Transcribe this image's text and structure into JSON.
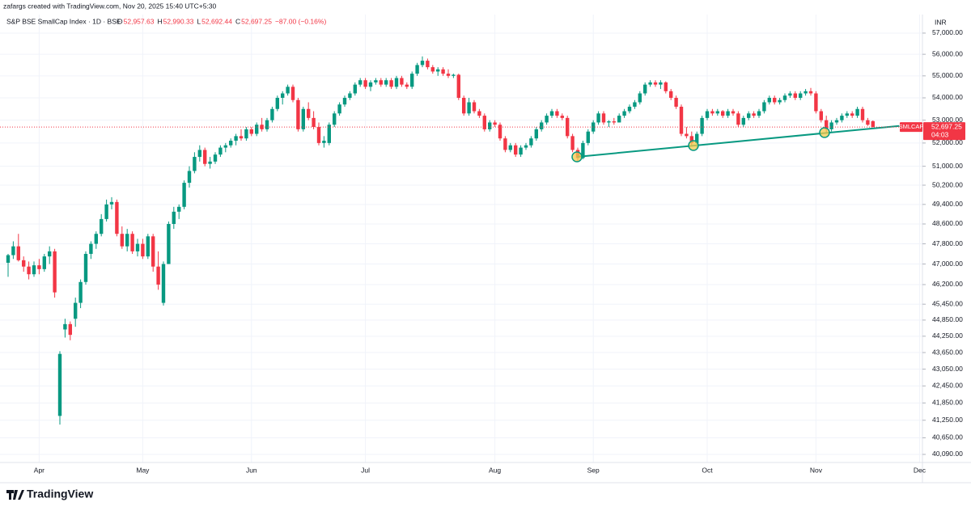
{
  "attribution": "zafargs created with TradingView.com, Nov 20, 2025 15:40 UTC+5:30",
  "brand": "TradingView",
  "chart_data": {
    "type": "candlestick",
    "title": "S&P BSE SmallCap Index · 1D · BSE",
    "ohlc_legend": [
      {
        "key": "O",
        "value": "52,957.63"
      },
      {
        "key": "H",
        "value": "52,990.33"
      },
      {
        "key": "L",
        "value": "52,692.44"
      },
      {
        "key": "C",
        "value": "52,697.25"
      }
    ],
    "change": "−87.00 (−0.16%)",
    "currency": "INR",
    "symbol": "SMLCAP",
    "last_price_label": "52,697.25",
    "countdown": "04:03",
    "up_color": "#089981",
    "down_color": "#f23645",
    "grid": true,
    "log_scale": true,
    "ylim": [
      39820,
      57890
    ],
    "yticks": [
      {
        "value": 57000,
        "label": "57,000.00"
      },
      {
        "value": 56000,
        "label": "56,000.00"
      },
      {
        "value": 55000,
        "label": "55,000.00"
      },
      {
        "value": 54000,
        "label": "54,000.00"
      },
      {
        "value": 53000,
        "label": "53,000.00"
      },
      {
        "value": 52000,
        "label": "52,000.00"
      },
      {
        "value": 51000,
        "label": "51,000.00"
      },
      {
        "value": 50200,
        "label": "50,200.00"
      },
      {
        "value": 49400,
        "label": "49,400.00"
      },
      {
        "value": 48600,
        "label": "48,600.00"
      },
      {
        "value": 47800,
        "label": "47,800.00"
      },
      {
        "value": 47000,
        "label": "47,000.00"
      },
      {
        "value": 46200,
        "label": "46,200.00"
      },
      {
        "value": 45450,
        "label": "45,450.00"
      },
      {
        "value": 44850,
        "label": "44,850.00"
      },
      {
        "value": 44250,
        "label": "44,250.00"
      },
      {
        "value": 43650,
        "label": "43,650.00"
      },
      {
        "value": 43050,
        "label": "43,050.00"
      },
      {
        "value": 42450,
        "label": "42,450.00"
      },
      {
        "value": 41850,
        "label": "41,850.00"
      },
      {
        "value": 41250,
        "label": "41,250.00"
      },
      {
        "value": 40650,
        "label": "40,650.00"
      },
      {
        "value": 40090,
        "label": "40,090.00"
      }
    ],
    "categories": [
      null,
      null,
      null,
      null,
      null,
      null,
      "Apr",
      null,
      null,
      null,
      null,
      null,
      null,
      null,
      null,
      null,
      null,
      null,
      null,
      null,
      null,
      null,
      null,
      null,
      null,
      null,
      "May",
      null,
      null,
      null,
      null,
      null,
      null,
      null,
      null,
      null,
      null,
      null,
      null,
      null,
      null,
      null,
      null,
      null,
      null,
      null,
      null,
      "Jun",
      null,
      null,
      null,
      null,
      null,
      null,
      null,
      null,
      null,
      null,
      null,
      null,
      null,
      null,
      null,
      null,
      null,
      null,
      null,
      null,
      null,
      "Jul",
      null,
      null,
      null,
      null,
      null,
      null,
      null,
      null,
      null,
      null,
      null,
      null,
      null,
      null,
      null,
      null,
      null,
      null,
      null,
      null,
      null,
      null,
      null,
      null,
      "Aug",
      null,
      null,
      null,
      null,
      null,
      null,
      null,
      null,
      null,
      null,
      null,
      null,
      null,
      null,
      null,
      null,
      null,
      null,
      "Sep",
      null,
      null,
      null,
      null,
      null,
      null,
      null,
      null,
      null,
      null,
      null,
      null,
      null,
      null,
      null,
      null,
      null,
      null,
      null,
      null,
      null,
      "Oct",
      null,
      null,
      null,
      null,
      null,
      null,
      null,
      null,
      null,
      null,
      null,
      null,
      null,
      null,
      null,
      null,
      null,
      null,
      null,
      null,
      "Nov",
      null,
      null,
      null,
      null,
      null,
      null,
      null,
      null,
      null,
      null,
      null,
      null,
      null,
      null,
      null,
      null,
      null,
      null,
      null,
      "Dec"
    ],
    "ohlc": [
      [
        47050,
        47400,
        46500,
        47350
      ],
      [
        47350,
        47900,
        47200,
        47700
      ],
      [
        47700,
        48200,
        47100,
        47150
      ],
      [
        47150,
        47300,
        46700,
        46900
      ],
      [
        46900,
        47100,
        46400,
        46600
      ],
      [
        46600,
        47100,
        46500,
        46950
      ],
      [
        46950,
        47200,
        46600,
        46800
      ],
      [
        46800,
        47400,
        46700,
        47300
      ],
      [
        47300,
        47700,
        47000,
        47500
      ],
      [
        47500,
        47600,
        45700,
        45900
      ],
      [
        41400,
        43700,
        41100,
        43600
      ],
      [
        44500,
        44900,
        44200,
        44700
      ],
      [
        44700,
        44800,
        44100,
        44300
      ],
      [
        44900,
        45700,
        44600,
        45500
      ],
      [
        45500,
        46400,
        45300,
        46300
      ],
      [
        46300,
        47500,
        46200,
        47400
      ],
      [
        47400,
        47900,
        47200,
        47800
      ],
      [
        47800,
        48300,
        47600,
        48200
      ],
      [
        48200,
        49000,
        48100,
        48800
      ],
      [
        48800,
        49600,
        48700,
        49400
      ],
      [
        49400,
        49700,
        49200,
        49500
      ],
      [
        49500,
        49600,
        48100,
        48200
      ],
      [
        48200,
        48500,
        47600,
        47700
      ],
      [
        47700,
        48400,
        47500,
        48200
      ],
      [
        48200,
        48300,
        47400,
        47500
      ],
      [
        47500,
        48000,
        47300,
        47800
      ],
      [
        47800,
        48000,
        47200,
        47300
      ],
      [
        47300,
        48200,
        47200,
        48100
      ],
      [
        48100,
        48200,
        46700,
        46900
      ],
      [
        46900,
        47500,
        46000,
        46200
      ],
      [
        45500,
        47100,
        45400,
        47000
      ],
      [
        47000,
        48700,
        47000,
        48600
      ],
      [
        48600,
        49300,
        48400,
        49100
      ],
      [
        49100,
        49400,
        48800,
        49300
      ],
      [
        49300,
        50400,
        49200,
        50300
      ],
      [
        50300,
        51000,
        50100,
        50800
      ],
      [
        50800,
        51600,
        50700,
        51400
      ],
      [
        51400,
        51900,
        51200,
        51700
      ],
      [
        51700,
        51800,
        51000,
        51100
      ],
      [
        51100,
        51400,
        50900,
        51200
      ],
      [
        51200,
        51600,
        51100,
        51500
      ],
      [
        51500,
        51900,
        51400,
        51800
      ],
      [
        51800,
        52000,
        51600,
        51900
      ],
      [
        51900,
        52200,
        51800,
        52100
      ],
      [
        52100,
        52400,
        51900,
        52300
      ],
      [
        52300,
        52600,
        52100,
        52200
      ],
      [
        52200,
        52700,
        52100,
        52600
      ],
      [
        52600,
        52700,
        52300,
        52400
      ],
      [
        52400,
        52900,
        52300,
        52800
      ],
      [
        52800,
        53100,
        52500,
        52600
      ],
      [
        52600,
        53100,
        52500,
        53000
      ],
      [
        53000,
        53600,
        52900,
        53500
      ],
      [
        53500,
        54100,
        53400,
        54000
      ],
      [
        54000,
        54300,
        53700,
        54200
      ],
      [
        54200,
        54600,
        54100,
        54500
      ],
      [
        54500,
        54600,
        53800,
        53900
      ],
      [
        53900,
        54000,
        52500,
        52600
      ],
      [
        52600,
        53600,
        52500,
        53500
      ],
      [
        53500,
        53800,
        53000,
        53100
      ],
      [
        53100,
        53400,
        52600,
        52700
      ],
      [
        52700,
        52900,
        51900,
        52000
      ],
      [
        52000,
        52300,
        51800,
        52100
      ],
      [
        52000,
        52900,
        51900,
        52800
      ],
      [
        52800,
        53400,
        52700,
        53300
      ],
      [
        53300,
        53800,
        53200,
        53700
      ],
      [
        53700,
        54100,
        53600,
        54000
      ],
      [
        54000,
        54300,
        53900,
        54200
      ],
      [
        54200,
        54700,
        54100,
        54600
      ],
      [
        54600,
        54900,
        54500,
        54800
      ],
      [
        54800,
        54900,
        54400,
        54500
      ],
      [
        54500,
        54800,
        54300,
        54700
      ],
      [
        54700,
        54900,
        54600,
        54800
      ],
      [
        54800,
        54900,
        54500,
        54600
      ],
      [
        54600,
        54900,
        54500,
        54800
      ],
      [
        54800,
        54900,
        54400,
        54500
      ],
      [
        54500,
        55000,
        54400,
        54900
      ],
      [
        54900,
        55000,
        54500,
        54600
      ],
      [
        54600,
        54700,
        54400,
        54500
      ],
      [
        54500,
        55200,
        54400,
        55100
      ],
      [
        55100,
        55600,
        55000,
        55500
      ],
      [
        55500,
        55900,
        55400,
        55700
      ],
      [
        55700,
        55800,
        55300,
        55400
      ],
      [
        55400,
        55500,
        55100,
        55200
      ],
      [
        55200,
        55400,
        55000,
        55300
      ],
      [
        55300,
        55400,
        55000,
        55100
      ],
      [
        55100,
        55300,
        54900,
        55000
      ],
      [
        55000,
        55100,
        54900,
        55050
      ],
      [
        55050,
        55100,
        53900,
        54000
      ],
      [
        54000,
        54100,
        53200,
        53300
      ],
      [
        53300,
        54000,
        53200,
        53800
      ],
      [
        53800,
        53900,
        53300,
        53400
      ],
      [
        53400,
        53500,
        53100,
        53200
      ],
      [
        53200,
        53300,
        52500,
        52600
      ],
      [
        52600,
        53000,
        52500,
        52900
      ],
      [
        52900,
        53000,
        52700,
        52800
      ],
      [
        52800,
        52900,
        52100,
        52200
      ],
      [
        52200,
        52300,
        51600,
        51700
      ],
      [
        51700,
        52000,
        51600,
        51900
      ],
      [
        51900,
        52000,
        51400,
        51500
      ],
      [
        51500,
        51900,
        51400,
        51800
      ],
      [
        51800,
        52000,
        51700,
        51900
      ],
      [
        51900,
        52300,
        51800,
        52200
      ],
      [
        52200,
        52700,
        52100,
        52600
      ],
      [
        52600,
        53000,
        52500,
        52900
      ],
      [
        52900,
        53300,
        52800,
        53200
      ],
      [
        53200,
        53500,
        53100,
        53400
      ],
      [
        53400,
        53500,
        53100,
        53200
      ],
      [
        53200,
        53300,
        53000,
        53100
      ],
      [
        53100,
        53200,
        52200,
        52300
      ],
      [
        52300,
        52400,
        51600,
        51700
      ],
      [
        51700,
        51800,
        51200,
        51350
      ],
      [
        51350,
        52100,
        51300,
        52000
      ],
      [
        52000,
        52600,
        51900,
        52500
      ],
      [
        52500,
        53000,
        52400,
        52900
      ],
      [
        52900,
        53400,
        52800,
        53300
      ],
      [
        53300,
        53400,
        52800,
        52900
      ],
      [
        52900,
        53000,
        52700,
        52950
      ],
      [
        52950,
        53100,
        52800,
        52900
      ],
      [
        52900,
        53300,
        52900,
        53200
      ],
      [
        53200,
        53500,
        53100,
        53400
      ],
      [
        53400,
        53700,
        53300,
        53600
      ],
      [
        53600,
        53900,
        53500,
        53800
      ],
      [
        53800,
        54300,
        53700,
        54200
      ],
      [
        54200,
        54700,
        54100,
        54600
      ],
      [
        54600,
        54800,
        54500,
        54700
      ],
      [
        54700,
        54800,
        54500,
        54600
      ],
      [
        54600,
        54800,
        54400,
        54700
      ],
      [
        54700,
        54750,
        54200,
        54300
      ],
      [
        54300,
        54400,
        53900,
        54000
      ],
      [
        54000,
        54100,
        53500,
        53600
      ],
      [
        53600,
        53700,
        52300,
        52400
      ],
      [
        52400,
        52700,
        52200,
        52300
      ],
      [
        52300,
        52500,
        51900,
        52000
      ],
      [
        52000,
        52500,
        51800,
        52400
      ],
      [
        52400,
        53200,
        52300,
        53100
      ],
      [
        53100,
        53500,
        53000,
        53400
      ],
      [
        53400,
        53500,
        53200,
        53300
      ],
      [
        53300,
        53500,
        53200,
        53400
      ],
      [
        53400,
        53450,
        53100,
        53200
      ],
      [
        53200,
        53500,
        53100,
        53400
      ],
      [
        53400,
        53500,
        53200,
        53300
      ],
      [
        53300,
        53400,
        52700,
        52800
      ],
      [
        52800,
        53200,
        52700,
        53100
      ],
      [
        53100,
        53400,
        53000,
        53300
      ],
      [
        53300,
        53400,
        53100,
        53200
      ],
      [
        53200,
        53500,
        53100,
        53400
      ],
      [
        53400,
        53900,
        53300,
        53800
      ],
      [
        53800,
        54100,
        53700,
        54000
      ],
      [
        54000,
        54100,
        53700,
        53800
      ],
      [
        53800,
        54000,
        53700,
        53900
      ],
      [
        53900,
        54200,
        53800,
        54100
      ],
      [
        54100,
        54300,
        54000,
        54200
      ],
      [
        54200,
        54300,
        53900,
        54000
      ],
      [
        54000,
        54300,
        53900,
        54200
      ],
      [
        54200,
        54400,
        54100,
        54300
      ],
      [
        54300,
        54450,
        54100,
        54200
      ],
      [
        54200,
        54300,
        53300,
        53400
      ],
      [
        53400,
        53500,
        52900,
        53000
      ],
      [
        53000,
        53200,
        52400,
        52600
      ],
      [
        52600,
        53000,
        52500,
        52900
      ],
      [
        52900,
        53100,
        52800,
        53000
      ],
      [
        53000,
        53300,
        52900,
        53200
      ],
      [
        53200,
        53400,
        53100,
        53300
      ],
      [
        53300,
        53400,
        53100,
        53200
      ],
      [
        53200,
        53600,
        53100,
        53500
      ],
      [
        53500,
        53600,
        52900,
        53000
      ],
      [
        53000,
        53100,
        52750,
        52800
      ],
      [
        52957.63,
        52990.33,
        52692.44,
        52697.25
      ],
      null,
      null,
      null,
      null,
      null,
      null,
      null
    ]
  }
}
